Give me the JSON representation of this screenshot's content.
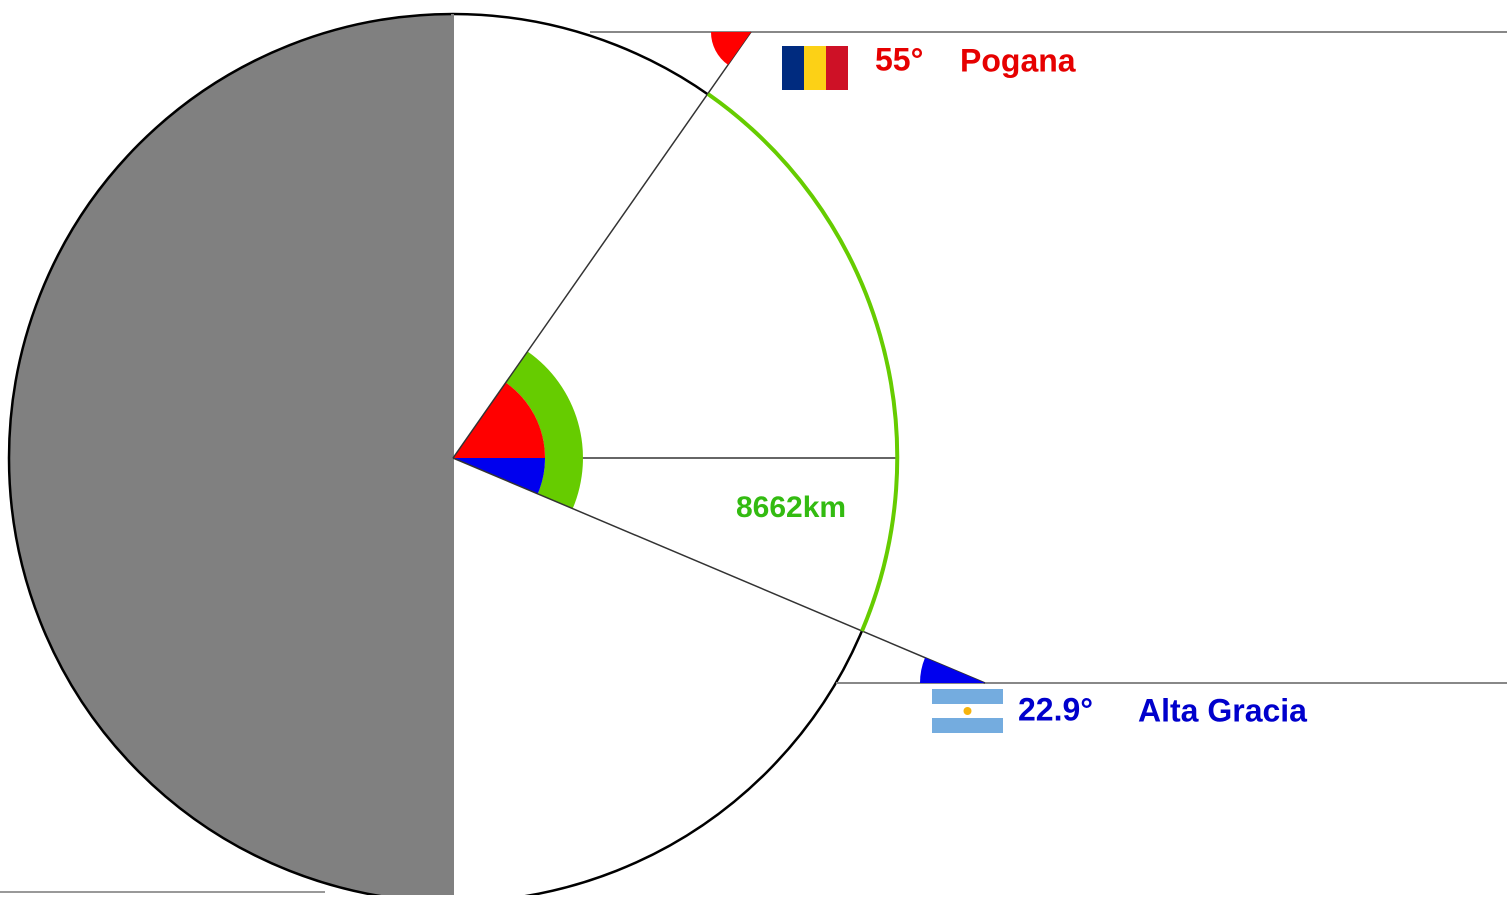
{
  "points": [
    {
      "angle": "55°",
      "name": "Pogana"
    },
    {
      "angle": "22.9°",
      "name": "Alta Gracia"
    }
  ],
  "distance": "8662km"
}
